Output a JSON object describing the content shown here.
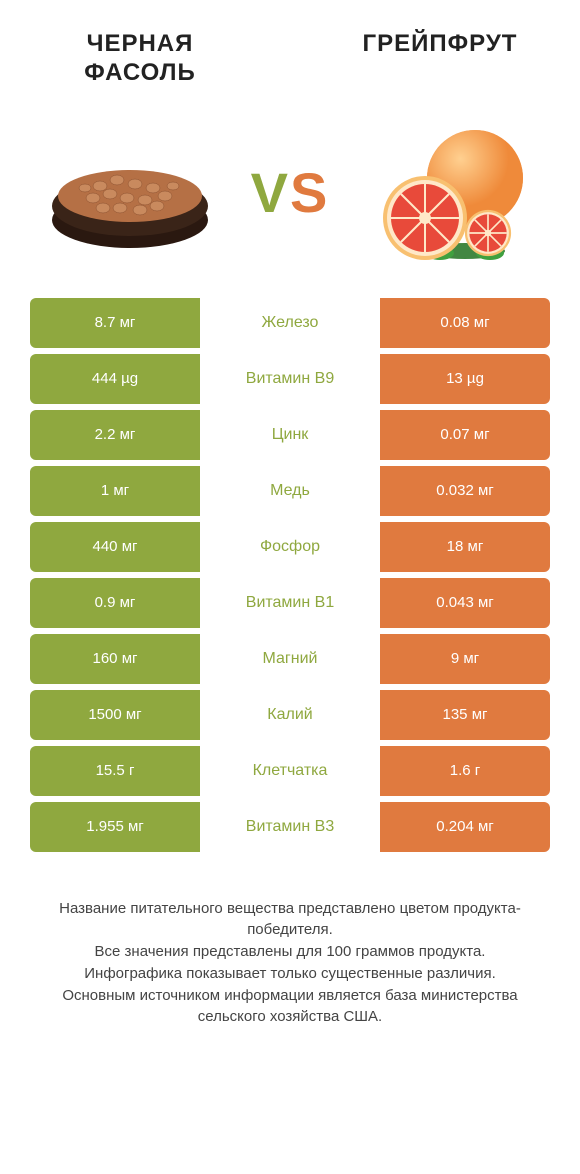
{
  "colors": {
    "left": "#8fa83f",
    "right": "#e07a3f",
    "left_dark": "#7e9636",
    "right_dark": "#d36a32",
    "text": "#333333",
    "bg": "#ffffff"
  },
  "typography": {
    "title_fontsize": 24,
    "vs_fontsize": 56,
    "cell_fontsize": 15,
    "mid_fontsize": 16,
    "footer_fontsize": 15
  },
  "header": {
    "left_title_line1": "ЧЕРНАЯ",
    "left_title_line2": "ФАСОЛЬ",
    "right_title": "ГРЕЙПФРУТ",
    "vs_v": "V",
    "vs_s": "S"
  },
  "rows": [
    {
      "left": "8.7 мг",
      "mid": "Железо",
      "right": "0.08 мг"
    },
    {
      "left": "444 µg",
      "mid": "Витамин B9",
      "right": "13 µg"
    },
    {
      "left": "2.2 мг",
      "mid": "Цинк",
      "right": "0.07 мг"
    },
    {
      "left": "1 мг",
      "mid": "Медь",
      "right": "0.032 мг"
    },
    {
      "left": "440 мг",
      "mid": "Фосфор",
      "right": "18 мг"
    },
    {
      "left": "0.9 мг",
      "mid": "Витамин B1",
      "right": "0.043 мг"
    },
    {
      "left": "160 мг",
      "mid": "Магний",
      "right": "9 мг"
    },
    {
      "left": "1500 мг",
      "mid": "Калий",
      "right": "135 мг"
    },
    {
      "left": "15.5 г",
      "mid": "Клетчатка",
      "right": "1.6 г"
    },
    {
      "left": "1.955 мг",
      "mid": "Витамин B3",
      "right": "0.204 мг"
    }
  ],
  "footer": {
    "line1": "Название питательного вещества представлено цветом продукта-победителя.",
    "line2": "Все значения представлены для 100 граммов продукта.",
    "line3": "Инфографика показывает только существенные различия.",
    "line4": "Основным источником информации является база министерства сельского хозяйства США."
  }
}
